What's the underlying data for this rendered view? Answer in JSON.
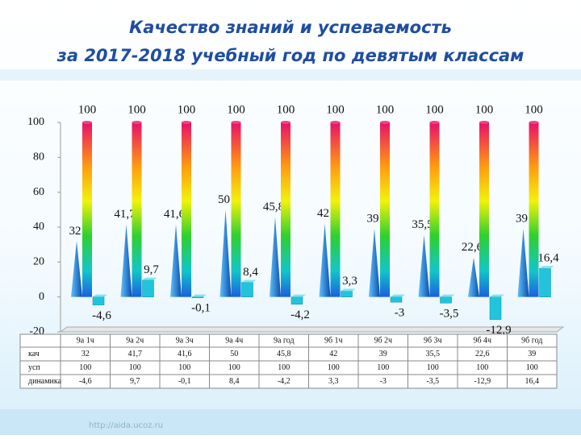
{
  "chart_data": {
    "type": "bar",
    "title": [
      "Качество знаний и успеваемость",
      "за 2017-2018 учебный год по девятым классам"
    ],
    "categories": [
      "9а 1ч",
      "9а 2ч",
      "9а 3ч",
      "9а 4ч",
      "9а год",
      "9б 1ч",
      "9б 2ч",
      "9б 3ч",
      "9б 4ч",
      "9б год"
    ],
    "series": [
      {
        "name": "кач",
        "color": "#1a7fd0",
        "shape": "cone",
        "values": [
          32,
          41.7,
          41.6,
          50,
          45.8,
          42,
          39,
          35.5,
          22.6,
          39
        ],
        "value_labels": [
          "32",
          "41,7",
          "41,6",
          "50",
          "45,8",
          "42",
          "39",
          "35,5",
          "22,6",
          "39"
        ]
      },
      {
        "name": "усп",
        "color": "rainbow",
        "shape": "cylinder",
        "values": [
          100,
          100,
          100,
          100,
          100,
          100,
          100,
          100,
          100,
          100
        ]
      },
      {
        "name": "динамика",
        "color": "#22c4dc",
        "shape": "box",
        "values": [
          -4.6,
          9.7,
          -0.1,
          8.4,
          -4.2,
          3.3,
          -3,
          -3.5,
          -12.9,
          16.4
        ],
        "value_labels": [
          "-4,6",
          "9,7",
          "-0,1",
          "8,4",
          "-4,2",
          "3,3",
          "-3",
          "-3,5",
          "-12,9",
          "16,4"
        ]
      }
    ],
    "ylim": [
      -20,
      100
    ],
    "yticks": [
      -20,
      0,
      20,
      40,
      60,
      80,
      100
    ],
    "data_table": true
  },
  "footer": "http://aida.ucoz.ru"
}
